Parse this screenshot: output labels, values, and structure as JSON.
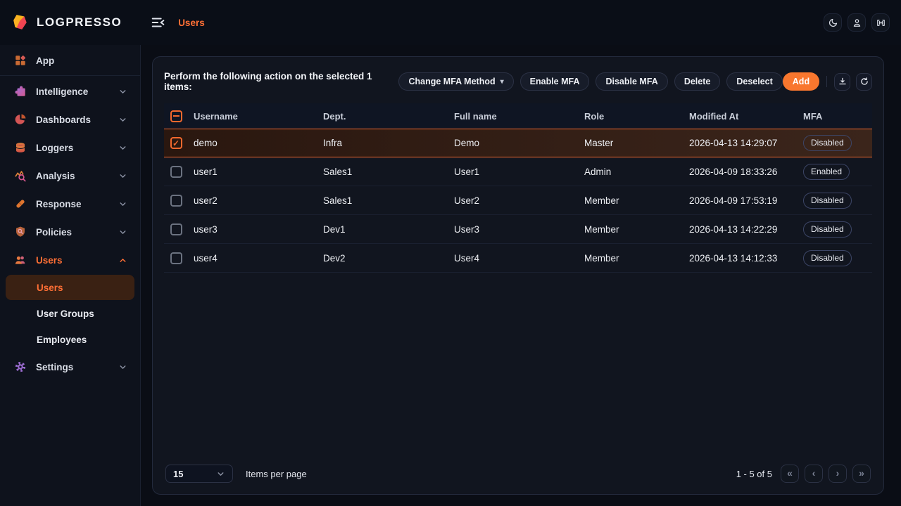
{
  "colors": {
    "accent": "#f4692e",
    "add_button": "#f9772e",
    "active_text": "#ff6f35",
    "badge_border": "#3c4566",
    "selected_row_gradient": [
      "#2a170f",
      "#3b251b"
    ]
  },
  "topbar": {
    "brand": "LOGPRESSO",
    "breadcrumb": "Users",
    "icons": [
      "collapse-sidebar-icon",
      "moon-icon",
      "account-icon",
      "license-icon"
    ]
  },
  "sidebar": {
    "items": [
      {
        "label": "App",
        "icon": "app",
        "chevron": null,
        "divider_after": true
      },
      {
        "label": "Intelligence",
        "icon": "intelligence",
        "chevron": "down"
      },
      {
        "label": "Dashboards",
        "icon": "dashboards",
        "chevron": "down"
      },
      {
        "label": "Loggers",
        "icon": "loggers",
        "chevron": "down"
      },
      {
        "label": "Analysis",
        "icon": "analysis",
        "chevron": "down"
      },
      {
        "label": "Response",
        "icon": "response",
        "chevron": "down"
      },
      {
        "label": "Policies",
        "icon": "policies",
        "chevron": "down"
      },
      {
        "label": "Users",
        "icon": "users",
        "chevron": "up",
        "active": true,
        "children": [
          {
            "label": "Users",
            "active": true
          },
          {
            "label": "User Groups",
            "active": false
          },
          {
            "label": "Employees",
            "active": false
          }
        ]
      },
      {
        "label": "Settings",
        "icon": "settings",
        "chevron": "down"
      }
    ]
  },
  "main": {
    "action_bar": {
      "prompt": "Perform the following action on the selected 1 items:",
      "dropdown_label": "Change MFA Method",
      "buttons": [
        "Enable MFA",
        "Disable MFA",
        "Delete",
        "Deselect"
      ],
      "add_label": "Add",
      "icon_buttons": [
        "download-icon",
        "refresh-icon"
      ]
    },
    "table": {
      "columns": [
        "Username",
        "Dept.",
        "Full name",
        "Role",
        "Modified At",
        "MFA"
      ],
      "header_checkbox_state": "indeterminate",
      "rows": [
        {
          "username": "demo",
          "dept": "Infra",
          "full_name": "Demo",
          "role": "Master",
          "modified_at": "2026-04-13 14:29:07",
          "mfa": "Disabled",
          "selected": true
        },
        {
          "username": "user1",
          "dept": "Sales1",
          "full_name": "User1",
          "role": "Admin",
          "modified_at": "2026-04-09 18:33:26",
          "mfa": "Enabled",
          "selected": false
        },
        {
          "username": "user2",
          "dept": "Sales1",
          "full_name": "User2",
          "role": "Member",
          "modified_at": "2026-04-09 17:53:19",
          "mfa": "Disabled",
          "selected": false
        },
        {
          "username": "user3",
          "dept": "Dev1",
          "full_name": "User3",
          "role": "Member",
          "modified_at": "2026-04-13 14:22:29",
          "mfa": "Disabled",
          "selected": false
        },
        {
          "username": "user4",
          "dept": "Dev2",
          "full_name": "User4",
          "role": "Member",
          "modified_at": "2026-04-13 14:12:33",
          "mfa": "Disabled",
          "selected": false
        }
      ]
    },
    "footer": {
      "items_per_page_value": "15",
      "items_per_page_label": "Items per page",
      "range_text": "1 - 5 of 5",
      "pager": [
        {
          "name": "first-page",
          "glyph": "«"
        },
        {
          "name": "prev-page",
          "glyph": "‹"
        },
        {
          "name": "next-page",
          "glyph": "›"
        },
        {
          "name": "last-page",
          "glyph": "»"
        }
      ]
    }
  }
}
